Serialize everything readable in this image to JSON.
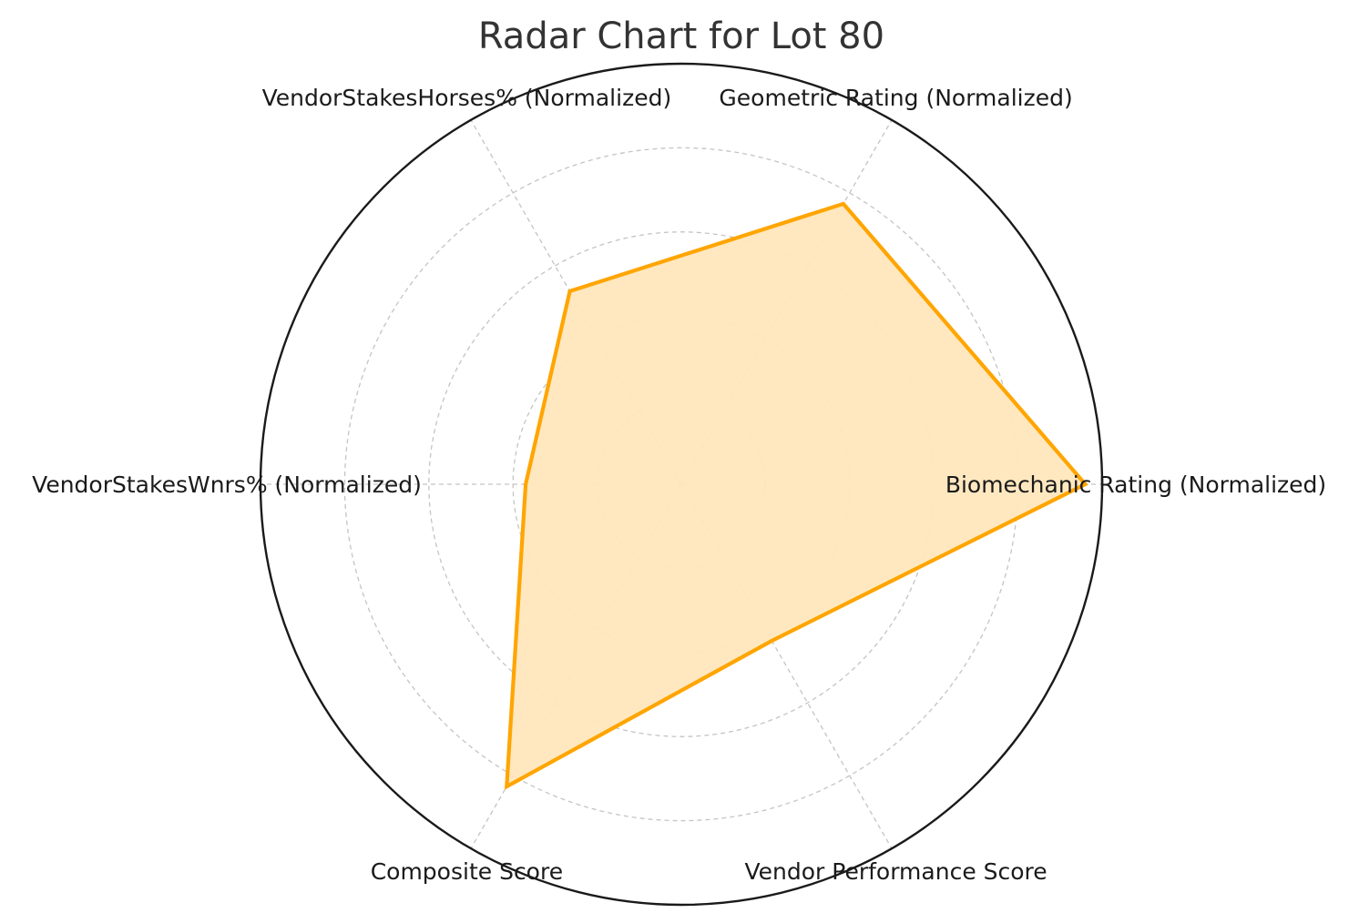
{
  "chart_data": {
    "type": "radar",
    "title": "Radar Chart for Lot 80",
    "categories": [
      "Biomechanic Rating (Normalized)",
      "Geometric Rating (Normalized)",
      "VendorStakesHorses% (Normalized)",
      "VendorStakesWnrs% (Normalized)",
      "Composite Score",
      "Vendor Performance Score"
    ],
    "series": [
      {
        "values": [
          0.96,
          0.77,
          0.53,
          0.37,
          0.83,
          0.43
        ]
      }
    ],
    "rlim": [
      0,
      1
    ],
    "radial_ticks": [
      0.2,
      0.4,
      0.6,
      0.8
    ],
    "radial_tick_labels_visible": false,
    "grid": true,
    "colors": {
      "line": "#ffa500",
      "fill": "#ffe7bd",
      "outer_ring": "#1a1a1a",
      "grid": "#c4c4c4",
      "title": "#333333",
      "labels": "#1a1a1a"
    }
  }
}
